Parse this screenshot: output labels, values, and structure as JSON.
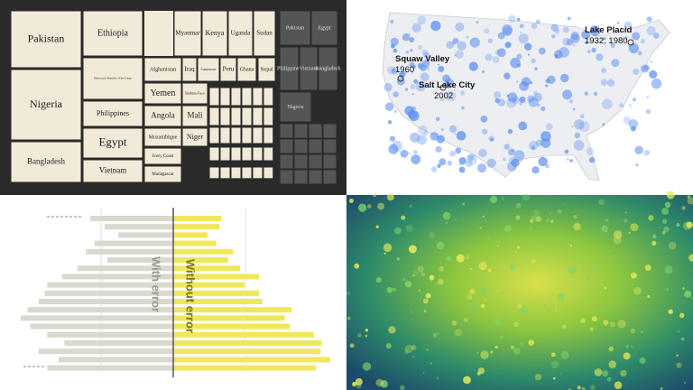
{
  "treemap": {
    "labels": [
      "Pakistan",
      "Nigeria",
      "Bangladesh",
      "Ethiopia",
      "Democratic Republic of the Congo",
      "Philippines",
      "Egypt",
      "Vietnam",
      "Myanmar",
      "Kenya",
      "Uganda",
      "Sudan",
      "Afghanistan",
      "Iraq",
      "Cameroon",
      "Peru",
      "Ghana",
      "Nepal",
      "Yemen",
      "Burkina Faso",
      "Angola",
      "Mali",
      "Mozambique",
      "Niger",
      "Ivory Coast",
      "Madagascar"
    ],
    "other_labels": [
      "Pakistan",
      "Egypt",
      "Philippines",
      "Vietnam",
      "Bangladesh",
      "Nigeria"
    ]
  },
  "map": {
    "annotations": [
      {
        "name": "Squaw Valley",
        "years": "1960"
      },
      {
        "name": "Salt Lake City",
        "years": "2002"
      },
      {
        "name": "Lake Placid",
        "years": "1932, 1980"
      }
    ]
  },
  "chart_data": {
    "type": "bar",
    "series": [
      {
        "name": "With error",
        "color": "#d9d9cf",
        "values": [
          97,
          80,
          64,
          92,
          102,
          77,
          112,
          130,
          147,
          150,
          157,
          170,
          178,
          167,
          147,
          127,
          157,
          134,
          147
        ]
      },
      {
        "name": "Without error",
        "color": "#f0e75a",
        "values": [
          56,
          54,
          40,
          50,
          70,
          64,
          78,
          100,
          83,
          100,
          104,
          138,
          130,
          136,
          164,
          173,
          172,
          183,
          166
        ]
      }
    ],
    "xlim": [
      0,
      200
    ]
  }
}
